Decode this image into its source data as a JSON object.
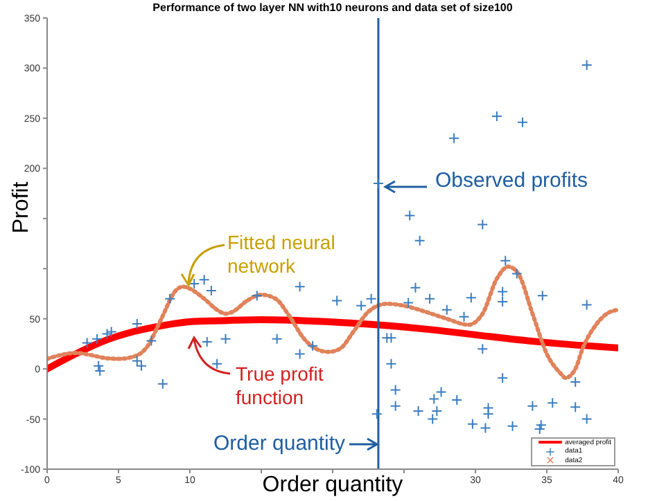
{
  "chart_data": {
    "type": "scatter",
    "title": "Performance of two layer NN with10 neurons and data set of size100",
    "xlabel": "Order quantity",
    "ylabel": "Profit",
    "xlim": [
      0,
      40
    ],
    "xticks": [
      0,
      5,
      10,
      {
        "value": 15,
        "label": null
      },
      {
        "value": 20,
        "label": null
      },
      {
        "value": 25,
        "label": null
      },
      30,
      35,
      40
    ],
    "ylim": [
      -100,
      350
    ],
    "yticks": [
      -100,
      -50,
      0,
      50,
      {
        "value": 100,
        "label": null
      },
      {
        "value": 150,
        "label": null
      },
      200,
      250,
      300,
      350
    ],
    "legend": "bottom right",
    "ref_lines": [
      {
        "axis": "x",
        "value": 23.2,
        "label": null,
        "color": "#1f5fa0"
      }
    ],
    "annotations": [
      "Observed profits",
      "Fitted neural network",
      "True profit function",
      "Order quantity"
    ],
    "series": [
      {
        "name": "averaged profit",
        "type": "line",
        "color": "#ff0000",
        "marker": "none",
        "line_style": "solid",
        "x": [
          0,
          2,
          4,
          6,
          8,
          10,
          12,
          15,
          18,
          21,
          24,
          27,
          30,
          33,
          36,
          40
        ],
        "values": [
          0,
          15,
          28,
          37,
          43,
          47,
          48,
          49,
          48,
          46,
          43,
          39,
          34,
          29,
          25,
          21
        ]
      },
      {
        "name": "data1",
        "color": "#3b7dbf",
        "marker": "cross",
        "x": [
          28.5,
          31.5,
          33.3,
          37.8,
          23.2,
          25.4,
          30.5,
          26.1,
          32.1,
          32.9,
          8.6,
          10.3,
          11.0,
          11.5,
          14.7,
          17.7,
          20.3,
          22.0,
          22.7,
          25.3,
          25.8,
          26.8,
          28.0,
          29.2,
          29.7,
          31.9,
          31.9,
          34.7,
          37.8,
          6.3,
          4.5,
          4.2,
          3.5,
          2.8,
          7.3,
          11.2,
          12.5,
          16.1,
          23.8,
          24.1,
          3.6,
          3.7,
          6.3,
          6.6,
          8.1,
          11.9,
          17.7,
          18.6,
          23.1,
          24.1,
          24.4,
          24.4,
          26.0,
          27.0,
          27.1,
          27.3,
          27.6,
          28.7,
          29.8,
          30.5,
          30.7,
          30.9,
          30.9,
          31.9,
          32.6,
          34.0,
          34.6,
          34.5,
          35.4,
          37.0,
          37.0,
          37.8
        ],
        "values": [
          230,
          252,
          246,
          303,
          185,
          153,
          144,
          128,
          108,
          95,
          70,
          85,
          89,
          78,
          73,
          82,
          68,
          63,
          70,
          66,
          81,
          70,
          59,
          52,
          71,
          77,
          67,
          73,
          64,
          45,
          37,
          35,
          30,
          26,
          28,
          27,
          30,
          30,
          31,
          31,
          3,
          -2,
          8,
          3,
          -15,
          5,
          15,
          23,
          -45,
          5,
          -21,
          -37,
          -42,
          -50,
          -30,
          -42,
          -23,
          -31,
          -55,
          20,
          -59,
          -45,
          -39,
          -9,
          -57,
          -37,
          -56,
          -60,
          -34,
          -13,
          -38,
          -50
        ]
      },
      {
        "name": "data2",
        "type": "line",
        "color": "#e0825a",
        "marker": "none",
        "line_style": "dotted",
        "x": [
          0,
          1,
          2,
          3,
          4,
          5,
          6,
          7,
          8,
          9,
          9.5,
          10,
          11,
          12,
          12.5,
          13,
          14,
          15,
          16,
          17,
          18,
          19,
          19.7,
          20.5,
          21.5,
          22.5,
          23.8,
          25,
          26.5,
          28,
          29.5,
          30.5,
          31.5,
          32.3,
          33,
          34,
          35,
          36,
          36.3,
          37,
          37.5,
          38.5,
          39.2,
          40
        ],
        "values": [
          10,
          14,
          16,
          14,
          11,
          10,
          12,
          22,
          50,
          78,
          82,
          80,
          70,
          58,
          55,
          57,
          68,
          74,
          70,
          52,
          30,
          19,
          17,
          20,
          38,
          57,
          65,
          63,
          57,
          50,
          44,
          55,
          90,
          102,
          95,
          55,
          15,
          -5,
          -9,
          0,
          20,
          45,
          55,
          59
        ]
      }
    ]
  }
}
